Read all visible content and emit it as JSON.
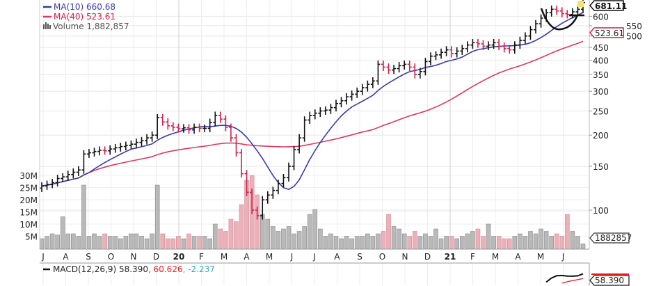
{
  "chart_data": {
    "type": "ohlc",
    "scale": "log",
    "frequency": "weekly",
    "ylim": [
      80,
      700
    ],
    "price_ticks": [
      100,
      150,
      200,
      250,
      300,
      350,
      400,
      450,
      500,
      550,
      600
    ],
    "volume_ticks": [
      "5M",
      "10M",
      "15M",
      "20M",
      "25M",
      "30M"
    ],
    "month_labels": [
      "J",
      "A",
      "S",
      "O",
      "N",
      "D",
      "20",
      "F",
      "M",
      "A",
      "M",
      "J",
      "J",
      "A",
      "S",
      "O",
      "N",
      "D",
      "21",
      "F",
      "M",
      "A",
      "M",
      "J"
    ],
    "close": [
      125,
      127,
      129,
      134,
      136,
      139,
      142,
      145,
      168,
      170,
      172,
      174,
      173,
      176,
      178,
      180,
      182,
      184,
      187,
      190,
      195,
      200,
      235,
      226,
      218,
      215,
      212,
      214,
      210,
      215,
      213,
      213,
      225,
      240,
      232,
      215,
      195,
      170,
      140,
      118,
      100,
      95,
      110,
      115,
      120,
      128,
      135,
      150,
      175,
      195,
      230,
      240,
      245,
      250,
      252,
      258,
      268,
      275,
      285,
      292,
      300,
      310,
      320,
      330,
      385,
      375,
      365,
      370,
      380,
      385,
      375,
      350,
      360,
      395,
      415,
      420,
      430,
      440,
      425,
      435,
      445,
      460,
      470,
      465,
      455,
      460,
      470,
      455,
      445,
      440,
      460,
      480,
      500,
      530,
      560,
      590,
      620,
      640,
      630,
      615,
      610,
      625,
      640,
      681.11
    ],
    "volume_millions": [
      4,
      5,
      6,
      5.5,
      13,
      6,
      6,
      5,
      26,
      5,
      6,
      5,
      6,
      5,
      5,
      4,
      5,
      6,
      6,
      5,
      4,
      6,
      26,
      6,
      4,
      4,
      5,
      4,
      6,
      5,
      5,
      5,
      4,
      10,
      8,
      7,
      12,
      11,
      18,
      28,
      30,
      22,
      14,
      12,
      9,
      7,
      8,
      9,
      6,
      7,
      9,
      14,
      16,
      8,
      5,
      6,
      5,
      4,
      5,
      4,
      5,
      5,
      6,
      5,
      6,
      7,
      14,
      9,
      8,
      6,
      5,
      7,
      5,
      6,
      5,
      8,
      4,
      5,
      5,
      4,
      5,
      6,
      7,
      8,
      5,
      10,
      5,
      5,
      4,
      4,
      5,
      6,
      5,
      7,
      6,
      8,
      7,
      5,
      6,
      5,
      14,
      7,
      5,
      1.88
    ],
    "legend": {
      "ma10": "MA(10) 660.68",
      "ma40": "MA(40) 523.61",
      "volume": "Volume 1,882,857"
    },
    "last_price_label": "681.11",
    "ma40_label": "523.61",
    "volume_label": "1882857",
    "macd": {
      "label": "MACD(12,26,9)",
      "macd_value": "58.390",
      "signal_value": ", 60.626",
      "hist_value": ", -2.237",
      "box_label": "58.390"
    },
    "colors": {
      "up": "#111111",
      "down": "#d0204a",
      "ma10": "#3a3aa8",
      "ma40": "#d83a5a",
      "volume_up": "#b9b9b9",
      "volume_down": "#eeb0b8",
      "macd_hist_text": "#3a9fd0"
    }
  }
}
